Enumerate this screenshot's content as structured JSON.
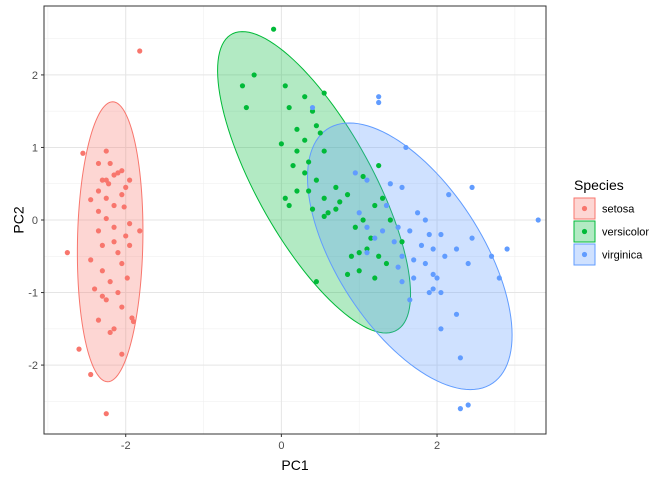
{
  "chart_data": {
    "type": "scatter",
    "xlabel": "PC1",
    "ylabel": "PC2",
    "xlim": [
      -3.05,
      3.4
    ],
    "ylim": [
      -2.95,
      2.95
    ],
    "x_ticks": [
      -2,
      0,
      2
    ],
    "y_ticks": [
      -2,
      -1,
      0,
      1,
      2
    ],
    "x_tick_labels": [
      "-2",
      "0",
      "2"
    ],
    "y_tick_labels": [
      "-2",
      "-1",
      "0",
      "1",
      "2"
    ],
    "grid": true,
    "legend_title": "Species",
    "legend_position": "right",
    "series": [
      {
        "name": "setosa",
        "color": "#F8766D",
        "ellipse": {
          "center": [
            -2.2,
            -0.3
          ],
          "semi_axes": [
            0.42,
            1.93
          ],
          "angle_deg": -1
        },
        "points": [
          [
            -2.25,
            0.95
          ],
          [
            -1.82,
            2.33
          ],
          [
            -2.25,
            0.55
          ],
          [
            -1.95,
            0.55
          ],
          [
            -2.0,
            0.45
          ],
          [
            -2.35,
            0.4
          ],
          [
            -2.22,
            0.5
          ],
          [
            -2.1,
            0.65
          ],
          [
            -2.05,
            0.68
          ],
          [
            -2.55,
            0.92
          ],
          [
            -2.35,
            0.78
          ],
          [
            -2.2,
            0.78
          ],
          [
            -2.15,
            0.62
          ],
          [
            -2.3,
            0.55
          ],
          [
            -2.05,
            0.35
          ],
          [
            -2.25,
            0.3
          ],
          [
            -2.45,
            0.28
          ],
          [
            -2.15,
            0.2
          ],
          [
            -2.02,
            0.18
          ],
          [
            -2.35,
            0.12
          ],
          [
            -2.25,
            0.02
          ],
          [
            -1.95,
            -0.05
          ],
          [
            -2.15,
            -0.1
          ],
          [
            -2.35,
            -0.15
          ],
          [
            -2.0,
            -0.22
          ],
          [
            -2.75,
            -0.45
          ],
          [
            -2.3,
            -0.35
          ],
          [
            -2.15,
            -0.3
          ],
          [
            -1.95,
            -0.35
          ],
          [
            -2.1,
            -0.45
          ],
          [
            -2.45,
            -0.55
          ],
          [
            -2.05,
            -0.6
          ],
          [
            -2.3,
            -0.7
          ],
          [
            -2.2,
            -0.85
          ],
          [
            -1.98,
            -0.8
          ],
          [
            -2.1,
            -1.0
          ],
          [
            -2.4,
            -0.95
          ],
          [
            -2.25,
            -1.1
          ],
          [
            -2.3,
            -1.05
          ],
          [
            -2.05,
            -1.2
          ],
          [
            -1.9,
            -1.4
          ],
          [
            -2.15,
            -1.5
          ],
          [
            -2.2,
            -1.55
          ],
          [
            -1.92,
            -1.35
          ],
          [
            -2.35,
            -1.38
          ],
          [
            -2.6,
            -1.78
          ],
          [
            -2.05,
            -1.85
          ],
          [
            -2.45,
            -2.13
          ],
          [
            -2.25,
            -2.67
          ],
          [
            -1.82,
            -0.15
          ]
        ]
      },
      {
        "name": "versicolor",
        "color": "#00BA38",
        "ellipse": {
          "center": [
            0.42,
            0.52
          ],
          "semi_axes": [
            0.75,
            2.3
          ],
          "angle_deg": 27
        },
        "points": [
          [
            -0.1,
            2.63
          ],
          [
            -0.35,
            2.0
          ],
          [
            -0.5,
            1.85
          ],
          [
            -0.45,
            1.55
          ],
          [
            0.05,
            1.85
          ],
          [
            0.55,
            1.75
          ],
          [
            0.3,
            1.7
          ],
          [
            0.1,
            1.55
          ],
          [
            0.4,
            1.5
          ],
          [
            0.2,
            1.25
          ],
          [
            0.45,
            1.3
          ],
          [
            0.3,
            1.1
          ],
          [
            0.5,
            1.2
          ],
          [
            0.0,
            1.05
          ],
          [
            0.2,
            0.95
          ],
          [
            0.35,
            0.8
          ],
          [
            0.15,
            0.75
          ],
          [
            0.3,
            0.65
          ],
          [
            0.55,
            0.95
          ],
          [
            0.45,
            0.55
          ],
          [
            0.2,
            0.4
          ],
          [
            0.05,
            0.3
          ],
          [
            0.1,
            0.2
          ],
          [
            0.35,
            0.4
          ],
          [
            0.55,
            0.3
          ],
          [
            0.7,
            0.15
          ],
          [
            0.55,
            0.05
          ],
          [
            0.75,
            0.25
          ],
          [
            1.05,
            0.6
          ],
          [
            1.3,
            0.3
          ],
          [
            1.2,
            0.2
          ],
          [
            1.05,
            0.0
          ],
          [
            0.95,
            -0.1
          ],
          [
            1.4,
            0.0
          ],
          [
            1.55,
            -0.3
          ],
          [
            1.15,
            -0.25
          ],
          [
            1.0,
            -0.45
          ],
          [
            1.25,
            -0.5
          ],
          [
            1.35,
            -0.6
          ],
          [
            1.2,
            -0.8
          ],
          [
            0.45,
            -0.85
          ],
          [
            0.85,
            -0.75
          ],
          [
            0.9,
            -0.5
          ],
          [
            1.0,
            -0.7
          ],
          [
            1.1,
            -0.4
          ],
          [
            0.6,
            0.1
          ],
          [
            0.7,
            0.45
          ],
          [
            0.85,
            0.35
          ],
          [
            1.25,
            0.75
          ],
          [
            0.4,
            0.15
          ]
        ]
      },
      {
        "name": "virginica",
        "color": "#619CFF",
        "ellipse": {
          "center": [
            1.65,
            -0.5
          ],
          "semi_axes": [
            0.95,
            2.05
          ],
          "angle_deg": 30
        },
        "points": [
          [
            1.25,
            1.7
          ],
          [
            1.25,
            1.62
          ],
          [
            0.4,
            1.55
          ],
          [
            0.95,
            0.65
          ],
          [
            1.1,
            0.55
          ],
          [
            1.4,
            0.5
          ],
          [
            1.55,
            0.45
          ],
          [
            2.15,
            0.35
          ],
          [
            1.35,
            0.2
          ],
          [
            1.0,
            0.1
          ],
          [
            1.75,
            0.1
          ],
          [
            1.85,
            0.0
          ],
          [
            3.3,
            0.0
          ],
          [
            1.1,
            -0.1
          ],
          [
            1.5,
            -0.1
          ],
          [
            1.65,
            -0.15
          ],
          [
            1.9,
            -0.2
          ],
          [
            2.05,
            -0.2
          ],
          [
            2.45,
            -0.25
          ],
          [
            1.2,
            -0.25
          ],
          [
            1.45,
            -0.3
          ],
          [
            1.8,
            -0.35
          ],
          [
            1.95,
            -0.4
          ],
          [
            2.25,
            -0.4
          ],
          [
            2.9,
            -0.4
          ],
          [
            1.1,
            -0.45
          ],
          [
            1.55,
            -0.5
          ],
          [
            1.7,
            -0.55
          ],
          [
            2.1,
            -0.5
          ],
          [
            1.85,
            -0.6
          ],
          [
            2.4,
            -0.6
          ],
          [
            1.5,
            -0.65
          ],
          [
            1.7,
            -0.8
          ],
          [
            1.95,
            -0.75
          ],
          [
            2.0,
            -0.8
          ],
          [
            1.55,
            -0.85
          ],
          [
            1.95,
            -0.95
          ],
          [
            2.05,
            -1.0
          ],
          [
            2.8,
            -0.8
          ],
          [
            1.65,
            -1.1
          ],
          [
            2.7,
            -0.5
          ],
          [
            1.9,
            -1.0
          ],
          [
            2.25,
            -1.3
          ],
          [
            2.05,
            -1.5
          ],
          [
            2.3,
            -1.9
          ],
          [
            2.4,
            -2.55
          ],
          [
            2.3,
            -2.6
          ],
          [
            1.3,
            -0.15
          ],
          [
            1.6,
            1.0
          ],
          [
            2.45,
            0.45
          ]
        ]
      }
    ]
  }
}
